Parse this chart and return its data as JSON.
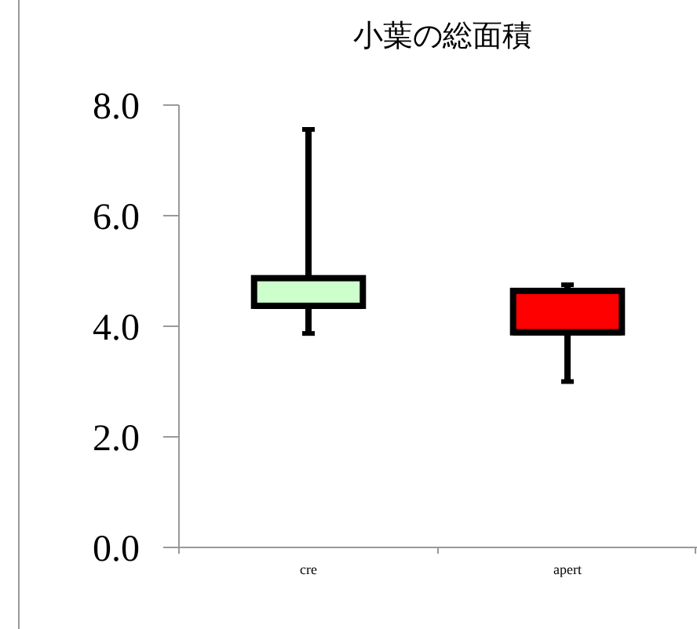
{
  "chart_data": {
    "type": "box",
    "title": "小葉の総面積",
    "categories": [
      "cre",
      "apert"
    ],
    "colors": [
      "#ccffcc",
      "#ff0000"
    ],
    "boxes": [
      {
        "low": 3.87,
        "q1": 4.37,
        "median": 4.37,
        "q3": 4.87,
        "high": 7.56
      },
      {
        "low": 3.0,
        "q1": 3.89,
        "median": 3.89,
        "q3": 4.64,
        "high": 4.75
      }
    ],
    "ylim": [
      0,
      8
    ],
    "yticks": [
      {
        "value": 0,
        "label": "0.0"
      },
      {
        "value": 2,
        "label": "2.0"
      },
      {
        "value": 4,
        "label": "4.0"
      },
      {
        "value": 6,
        "label": "6.0"
      },
      {
        "value": 8,
        "label": "8.0"
      }
    ],
    "grid": false
  }
}
